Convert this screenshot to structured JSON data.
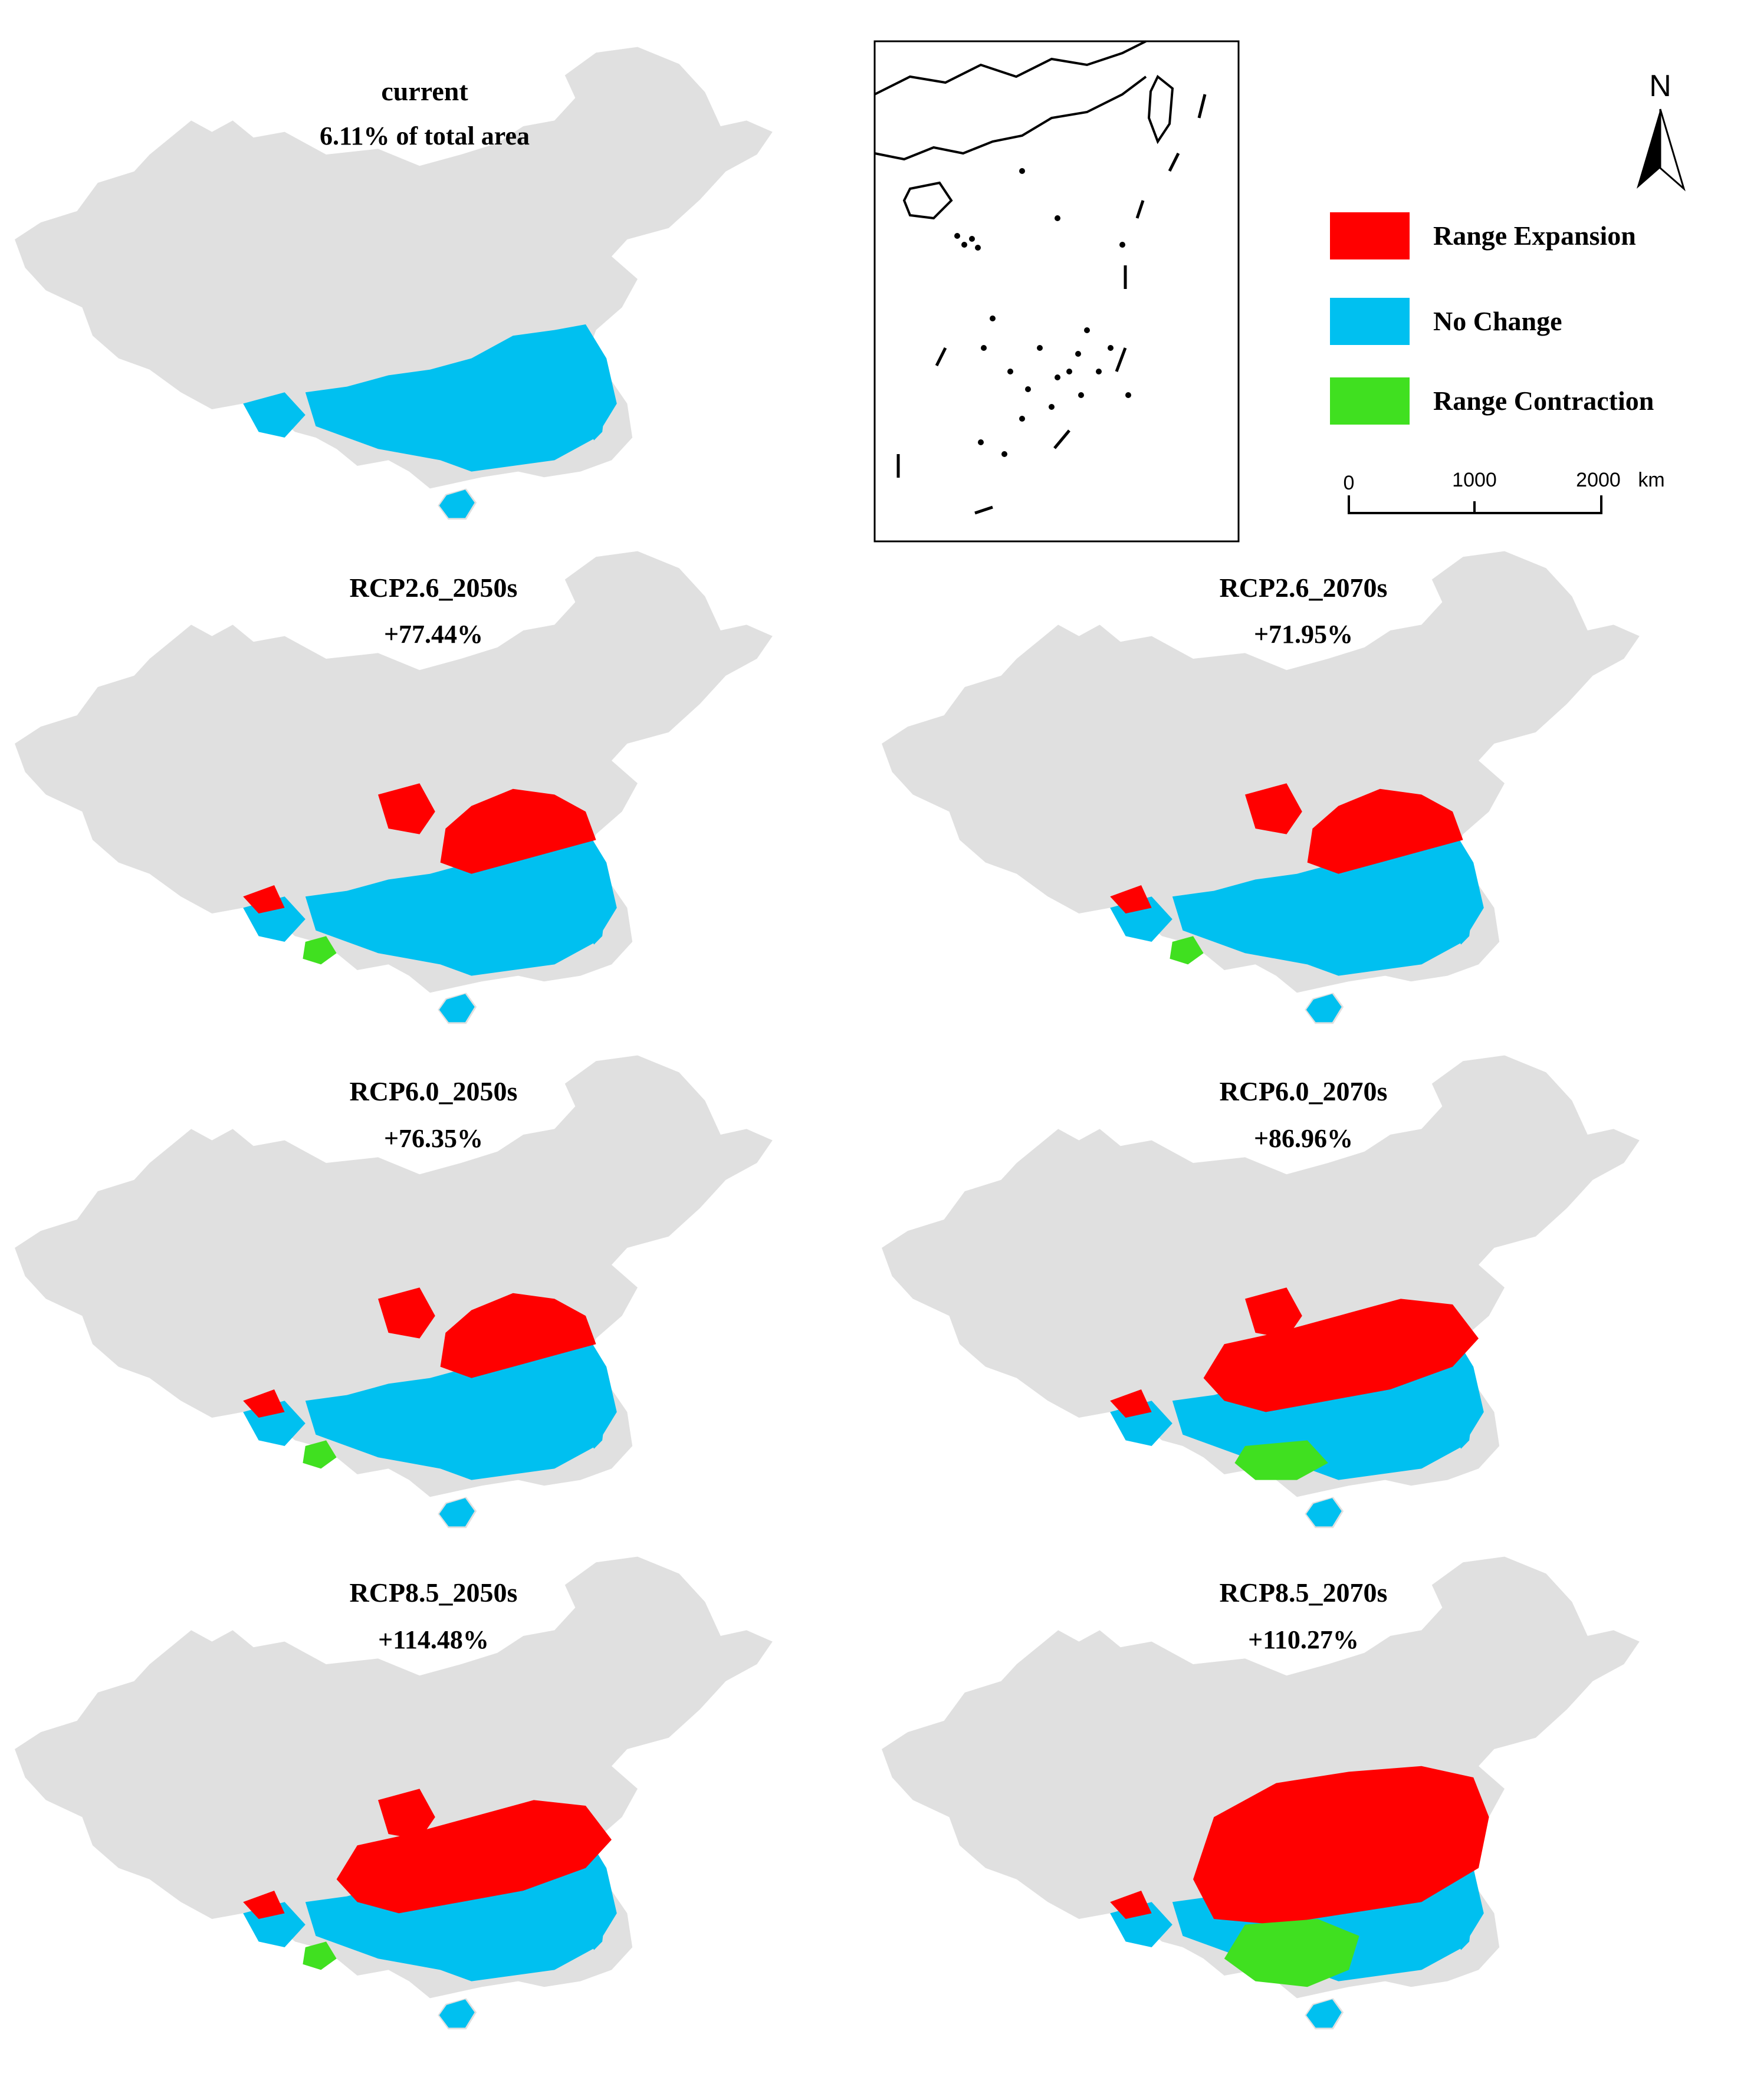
{
  "colors": {
    "land": "#e0e0e0",
    "expansion": "#ff0000",
    "no_change": "#00c0f0",
    "contraction": "#40e020",
    "outline": "#000000"
  },
  "maps": [
    {
      "id": "current",
      "title": "current",
      "subtitle": "6.11% of total area",
      "expansion": 0,
      "contraction": 0
    },
    {
      "id": "rcp26_2050",
      "title": "RCP2.6_2050s",
      "subtitle": "+77.44%",
      "expansion": 2,
      "contraction": 1
    },
    {
      "id": "rcp26_2070",
      "title": "RCP2.6_2070s",
      "subtitle": "+71.95%",
      "expansion": 2,
      "contraction": 1
    },
    {
      "id": "rcp60_2050",
      "title": "RCP6.0_2050s",
      "subtitle": "+76.35%",
      "expansion": 2,
      "contraction": 1
    },
    {
      "id": "rcp60_2070",
      "title": "RCP6.0_2070s",
      "subtitle": "+86.96%",
      "expansion": 3,
      "contraction": 2
    },
    {
      "id": "rcp85_2050",
      "title": "RCP8.5_2050s",
      "subtitle": "+114.48%",
      "expansion": 3,
      "contraction": 1
    },
    {
      "id": "rcp85_2070",
      "title": "RCP8.5_2070s",
      "subtitle": "+110.27%",
      "expansion": 4,
      "contraction": 3
    }
  ],
  "legend": {
    "items": [
      {
        "label": "Range Expansion",
        "color_key": "expansion"
      },
      {
        "label": "No Change",
        "color_key": "no_change"
      },
      {
        "label": "Range Contraction",
        "color_key": "contraction"
      }
    ]
  },
  "north_arrow": {
    "label": "N"
  },
  "scale_bar": {
    "ticks": [
      "0",
      "1000",
      "2000"
    ],
    "unit": "km"
  }
}
